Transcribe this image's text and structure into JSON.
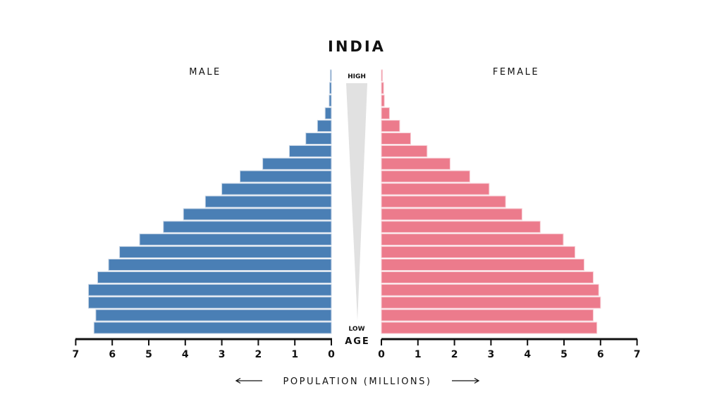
{
  "chart_data": {
    "type": "bar",
    "subtype": "population-pyramid",
    "title": "INDIA",
    "left_series": {
      "name": "MALE",
      "color": "#4a7fb5"
    },
    "right_series": {
      "name": "FEMALE",
      "color": "#ec7b8c"
    },
    "age_axis": {
      "label": "AGE",
      "top_label": "HIGH",
      "bottom_label": "LOW"
    },
    "xlabel": "POPULATION (MILLIONS)",
    "xlim": [
      0,
      7
    ],
    "x_ticks": [
      "7",
      "6",
      "5",
      "4",
      "3",
      "2",
      "1",
      "0"
    ],
    "x_ticks_right": [
      "0",
      "1",
      "2",
      "3",
      "4",
      "5",
      "6",
      "7"
    ],
    "age_groups_high_to_low": 21,
    "male": [
      0.03,
      0.05,
      0.06,
      0.17,
      0.38,
      0.7,
      1.15,
      1.88,
      2.5,
      3.0,
      3.45,
      4.05,
      4.6,
      5.25,
      5.8,
      6.1,
      6.4,
      6.65,
      6.65,
      6.45,
      6.5
    ],
    "female": [
      0.03,
      0.06,
      0.08,
      0.22,
      0.5,
      0.8,
      1.25,
      1.88,
      2.42,
      2.95,
      3.4,
      3.85,
      4.35,
      4.98,
      5.3,
      5.55,
      5.8,
      5.95,
      6.0,
      5.8,
      5.9
    ]
  }
}
